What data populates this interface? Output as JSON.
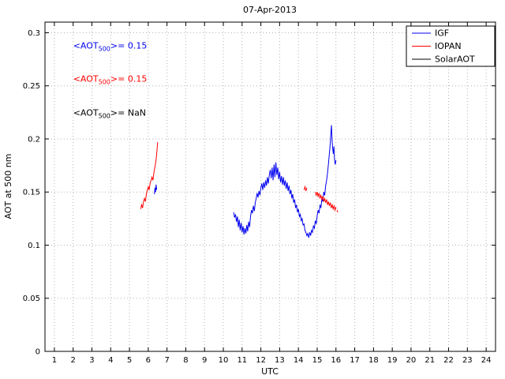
{
  "chart_data": {
    "type": "line",
    "title": "07-Apr-2013",
    "xlabel": "UTC",
    "ylabel": "AOT at 500 nm",
    "xlim": [
      0.5,
      24.5
    ],
    "ylim": [
      0,
      0.31
    ],
    "xticks": [
      1,
      2,
      3,
      4,
      5,
      6,
      7,
      8,
      9,
      10,
      11,
      12,
      13,
      14,
      15,
      16,
      17,
      18,
      19,
      20,
      21,
      22,
      23,
      24
    ],
    "xtick_labels": [
      "1",
      "2",
      "3",
      "4",
      "5",
      "6",
      "7",
      "8",
      "9",
      "10",
      "11",
      "12",
      "13",
      "14",
      "15",
      "16",
      "17",
      "18",
      "19",
      "20",
      "21",
      "22",
      "23",
      "24"
    ],
    "yticks": [
      0,
      0.05,
      0.1,
      0.15,
      0.2,
      0.25,
      0.3
    ],
    "ytick_labels": [
      "0",
      "0.05",
      "0.1",
      "0.15",
      "0.2",
      "0.25",
      "0.3"
    ],
    "grid": true,
    "legend": {
      "position": "northeast",
      "entries": [
        {
          "label": "IGF",
          "color": "#0000EE"
        },
        {
          "label": "IOPAN",
          "color": "#FF0000"
        },
        {
          "label": "SolarAOT",
          "color": "#000000"
        }
      ]
    },
    "annotations": [
      {
        "pre": "<AOT",
        "sub": "500",
        "post": ">= 0.15",
        "color": "#0000EE",
        "x": 2.0,
        "y": 0.285
      },
      {
        "pre": "<AOT",
        "sub": "500",
        "post": ">= 0.15",
        "color": "#FF0000",
        "x": 2.0,
        "y": 0.254
      },
      {
        "pre": "<AOT",
        "sub": "500",
        "post": ">=  NaN",
        "color": "#000000",
        "x": 2.0,
        "y": 0.222
      }
    ],
    "series": [
      {
        "name": "IGF",
        "color": "#0000EE",
        "segments": [
          [
            [
              6.33,
              0.148
            ],
            [
              6.36,
              0.154
            ],
            [
              6.39,
              0.15
            ],
            [
              6.42,
              0.157
            ],
            [
              6.45,
              0.152
            ]
          ],
          [
            [
              10.55,
              0.131
            ],
            [
              10.6,
              0.126
            ],
            [
              10.65,
              0.129
            ],
            [
              10.7,
              0.122
            ],
            [
              10.75,
              0.127
            ],
            [
              10.8,
              0.117
            ],
            [
              10.85,
              0.124
            ],
            [
              10.9,
              0.114
            ],
            [
              10.95,
              0.121
            ],
            [
              11.0,
              0.112
            ],
            [
              11.05,
              0.118
            ],
            [
              11.1,
              0.11
            ],
            [
              11.15,
              0.116
            ],
            [
              11.2,
              0.111
            ],
            [
              11.25,
              0.119
            ],
            [
              11.3,
              0.113
            ],
            [
              11.35,
              0.122
            ],
            [
              11.4,
              0.117
            ],
            [
              11.45,
              0.127
            ],
            [
              11.5,
              0.133
            ],
            [
              11.55,
              0.13
            ],
            [
              11.6,
              0.137
            ],
            [
              11.65,
              0.132
            ],
            [
              11.7,
              0.14
            ],
            [
              11.75,
              0.144
            ],
            [
              11.8,
              0.149
            ],
            [
              11.85,
              0.145
            ],
            [
              11.9,
              0.151
            ],
            [
              11.95,
              0.147
            ],
            [
              12.0,
              0.154
            ],
            [
              12.05,
              0.158
            ],
            [
              12.1,
              0.152
            ],
            [
              12.15,
              0.159
            ],
            [
              12.2,
              0.154
            ],
            [
              12.25,
              0.161
            ],
            [
              12.3,
              0.156
            ],
            [
              12.35,
              0.164
            ],
            [
              12.4,
              0.158
            ],
            [
              12.45,
              0.166
            ],
            [
              12.5,
              0.171
            ],
            [
              12.55,
              0.163
            ],
            [
              12.6,
              0.173
            ],
            [
              12.65,
              0.161
            ],
            [
              12.7,
              0.176
            ],
            [
              12.75,
              0.164
            ],
            [
              12.8,
              0.178
            ],
            [
              12.85,
              0.166
            ],
            [
              12.9,
              0.173
            ],
            [
              12.95,
              0.162
            ],
            [
              13.0,
              0.169
            ],
            [
              13.05,
              0.159
            ],
            [
              13.1,
              0.165
            ],
            [
              13.15,
              0.157
            ],
            [
              13.2,
              0.164
            ],
            [
              13.25,
              0.156
            ],
            [
              13.3,
              0.161
            ],
            [
              13.35,
              0.153
            ],
            [
              13.4,
              0.159
            ],
            [
              13.45,
              0.151
            ],
            [
              13.5,
              0.156
            ],
            [
              13.55,
              0.148
            ],
            [
              13.6,
              0.152
            ],
            [
              13.65,
              0.144
            ],
            [
              13.7,
              0.148
            ],
            [
              13.75,
              0.14
            ],
            [
              13.8,
              0.143
            ],
            [
              13.85,
              0.135
            ],
            [
              13.9,
              0.138
            ],
            [
              13.95,
              0.131
            ],
            [
              14.0,
              0.134
            ],
            [
              14.05,
              0.127
            ],
            [
              14.1,
              0.129
            ],
            [
              14.15,
              0.123
            ],
            [
              14.2,
              0.125
            ],
            [
              14.25,
              0.119
            ],
            [
              14.3,
              0.12
            ],
            [
              14.35,
              0.114
            ],
            [
              14.4,
              0.112
            ],
            [
              14.45,
              0.109
            ],
            [
              14.5,
              0.111
            ],
            [
              14.55,
              0.107
            ],
            [
              14.6,
              0.112
            ],
            [
              14.65,
              0.109
            ],
            [
              14.7,
              0.114
            ],
            [
              14.75,
              0.112
            ],
            [
              14.8,
              0.118
            ],
            [
              14.85,
              0.116
            ],
            [
              14.9,
              0.123
            ],
            [
              14.95,
              0.12
            ],
            [
              15.0,
              0.128
            ],
            [
              15.05,
              0.133
            ],
            [
              15.1,
              0.13
            ],
            [
              15.15,
              0.138
            ],
            [
              15.2,
              0.135
            ],
            [
              15.25,
              0.144
            ],
            [
              15.3,
              0.141
            ],
            [
              15.35,
              0.15
            ],
            [
              15.4,
              0.147
            ],
            [
              15.45,
              0.156
            ],
            [
              15.5,
              0.161
            ],
            [
              15.55,
              0.168
            ],
            [
              15.6,
              0.177
            ],
            [
              15.65,
              0.186
            ],
            [
              15.7,
              0.196
            ],
            [
              15.73,
              0.205
            ],
            [
              15.76,
              0.213
            ],
            [
              15.79,
              0.2
            ],
            [
              15.82,
              0.192
            ],
            [
              15.86,
              0.186
            ],
            [
              15.89,
              0.193
            ],
            [
              15.92,
              0.181
            ],
            [
              15.96,
              0.176
            ],
            [
              16.0,
              0.18
            ]
          ]
        ]
      },
      {
        "name": "IOPAN",
        "color": "#FF0000",
        "segments": [
          [
            [
              5.6,
              0.134
            ],
            [
              5.65,
              0.138
            ],
            [
              5.7,
              0.135
            ],
            [
              5.75,
              0.141
            ],
            [
              5.8,
              0.144
            ],
            [
              5.85,
              0.141
            ],
            [
              5.9,
              0.148
            ],
            [
              5.95,
              0.152
            ],
            [
              6.0,
              0.155
            ],
            [
              6.05,
              0.152
            ],
            [
              6.1,
              0.158
            ],
            [
              6.15,
              0.161
            ],
            [
              6.2,
              0.164
            ],
            [
              6.25,
              0.161
            ],
            [
              6.3,
              0.168
            ],
            [
              6.35,
              0.173
            ],
            [
              6.4,
              0.178
            ],
            [
              6.45,
              0.186
            ],
            [
              6.5,
              0.197
            ]
          ],
          [
            [
              14.3,
              0.152
            ],
            [
              14.35,
              0.155
            ],
            [
              14.4,
              0.151
            ],
            [
              14.45,
              0.154
            ]
          ],
          [
            [
              14.9,
              0.15
            ],
            [
              14.95,
              0.147
            ],
            [
              15.0,
              0.15
            ],
            [
              15.05,
              0.146
            ],
            [
              15.1,
              0.149
            ],
            [
              15.15,
              0.144
            ],
            [
              15.2,
              0.147
            ],
            [
              15.25,
              0.143
            ],
            [
              15.3,
              0.146
            ],
            [
              15.35,
              0.141
            ],
            [
              15.4,
              0.144
            ],
            [
              15.45,
              0.14
            ],
            [
              15.5,
              0.143
            ],
            [
              15.55,
              0.138
            ],
            [
              15.6,
              0.141
            ],
            [
              15.65,
              0.137
            ],
            [
              15.7,
              0.14
            ],
            [
              15.75,
              0.135
            ],
            [
              15.8,
              0.138
            ],
            [
              15.85,
              0.134
            ],
            [
              15.9,
              0.137
            ],
            [
              15.95,
              0.133
            ],
            [
              16.0,
              0.136
            ]
          ],
          [
            [
              16.05,
              0.133
            ],
            [
              16.1,
              0.131
            ]
          ]
        ]
      },
      {
        "name": "SolarAOT",
        "color": "#000000",
        "segments": []
      }
    ]
  }
}
